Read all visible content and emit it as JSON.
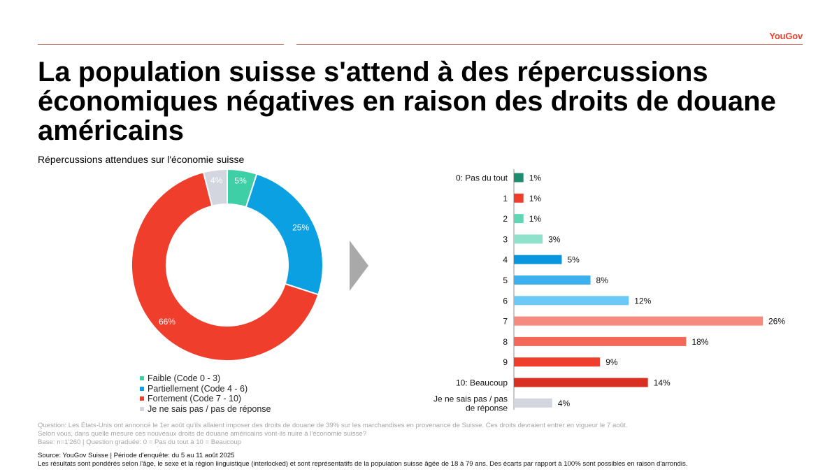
{
  "brand": "YouGov",
  "title": "La population suisse s'attend à des répercussions économiques négatives en raison des droits de douane américains",
  "subtitle": "Répercussions attendues sur l'économie suisse",
  "chart_data": [
    {
      "type": "pie",
      "variant": "donut",
      "categories": [
        "Faible (Code 0 - 3)",
        "Partiellement (Code 4 - 6)",
        "Fortement (Code 7 - 10)",
        "Je ne sais pas / pas de réponse"
      ],
      "values": [
        5,
        25,
        66,
        4
      ],
      "labels": [
        "5%",
        "25%",
        "66%",
        "4%"
      ],
      "colors": [
        "#3fcfa6",
        "#0aa0e2",
        "#ef3e2c",
        "#d4d6df"
      ],
      "legend_position": "bottom-left"
    },
    {
      "type": "bar",
      "orientation": "horizontal",
      "categories": [
        "0: Pas du tout",
        "1",
        "2",
        "3",
        "4",
        "5",
        "6",
        "7",
        "8",
        "9",
        "10: Beaucoup",
        "Je ne sais pas / pas de réponse"
      ],
      "category_lines": [
        [
          "0: Pas du tout"
        ],
        [
          "1"
        ],
        [
          "2"
        ],
        [
          "3"
        ],
        [
          "4"
        ],
        [
          "5"
        ],
        [
          "6"
        ],
        [
          "7"
        ],
        [
          "8"
        ],
        [
          "9"
        ],
        [
          "10: Beaucoup"
        ],
        [
          "Je ne sais pas / pas",
          "de réponse"
        ]
      ],
      "values": [
        1,
        1,
        1,
        3,
        5,
        8,
        12,
        26,
        18,
        9,
        14,
        4
      ],
      "labels": [
        "1%",
        "1%",
        "1%",
        "3%",
        "5%",
        "8%",
        "12%",
        "26%",
        "18%",
        "9%",
        "14%",
        "4%"
      ],
      "colors": [
        "#1e8c6e",
        "#ef3e2c",
        "#5fd6b6",
        "#8fe1cc",
        "#0a96de",
        "#3db0ee",
        "#6cc8f5",
        "#f58a7e",
        "#f4685a",
        "#ef3e2c",
        "#d92f23",
        "#d4d6df"
      ],
      "xlim": [
        0,
        26
      ],
      "grid": false
    }
  ],
  "notes": [
    "Question: Les États-Unis ont annoncé le 1er août qu'ils allaient imposer des droits de douane de 39% sur les marchandises en provenance de Suisse. Ces droits devraient entrer en vigueur le 7 août.",
    "Selon vous, dans quelle mesure ces nouveaux droits de douane américains vont-ils nuire à l'économie suisse?",
    "Base: n=1'260 | Question graduée: 0 = Pas du tout à 10 = Beaucoup"
  ],
  "source": [
    "Source: YouGov Suisse | Période d'enquête: du 5 au 11 août 2025",
    "Les résultats sont pondérés selon l'âge, le sexe et la région linguistique (interlocked) et sont représentatifs de la population suisse âgée de 18 à 79 ans. Des écarts par rapport à 100% sont possibles en raison d'arrondis."
  ]
}
